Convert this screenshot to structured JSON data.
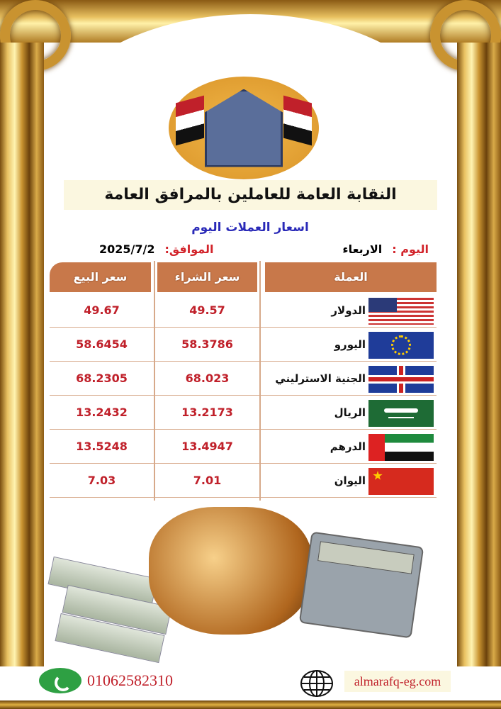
{
  "header": {
    "org_title": "النقابة العامة للعاملين بالمرافق العامة",
    "subtitle": "اسعار العملات اليوم",
    "day_label": "اليوم :",
    "day_value": "الاربعاء",
    "date_label": "الموافق:",
    "date_value": "2025/7/2"
  },
  "table": {
    "headers": {
      "currency": "العملة",
      "buy": "سعر الشراء",
      "sell": "سعر البيع"
    },
    "rows": [
      {
        "currency": "الدولار",
        "flag": "us-flag-icon",
        "buy": "49.57",
        "sell": "49.67"
      },
      {
        "currency": "اليورو",
        "flag": "eu-flag-icon",
        "buy": "58.3786",
        "sell": "58.6454"
      },
      {
        "currency": "الجنية الاسترليني",
        "flag": "uk-flag-icon",
        "buy": "68.023",
        "sell": "68.2305"
      },
      {
        "currency": "الريال",
        "flag": "saudi-flag-icon",
        "buy": "13.2173",
        "sell": "13.2432"
      },
      {
        "currency": "الدرهم",
        "flag": "uae-flag-icon",
        "buy": "13.4947",
        "sell": "13.5248"
      },
      {
        "currency": "اليوان",
        "flag": "china-flag-icon",
        "buy": "7.01",
        "sell": "7.03"
      }
    ]
  },
  "footer": {
    "phone": "01062582310",
    "website": "almarafq-eg.com"
  },
  "colors": {
    "header_bg": "#c8784a",
    "value_red": "#c0202a",
    "subtitle_blue": "#2a2ab8",
    "gold": "#c99330"
  }
}
